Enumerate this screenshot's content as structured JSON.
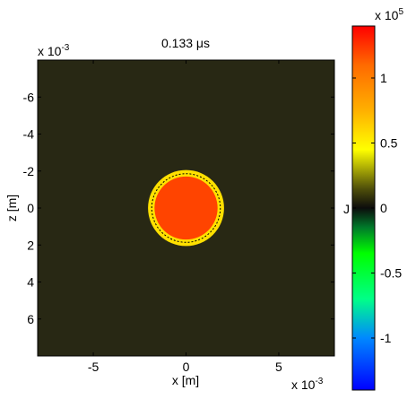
{
  "chart_data": {
    "type": "heatmap",
    "title": "0.133 μs",
    "xlabel": "x [m]",
    "ylabel": "z [m]",
    "x_scale_label": "x 10",
    "x_scale_exp": "-3",
    "z_scale_label": "x 10",
    "z_scale_exp": "-3",
    "xlim": [
      -8,
      8
    ],
    "zlim": [
      -8,
      8
    ],
    "z_axis_reversed": true,
    "x_ticks": [
      {
        "value": -5,
        "label": "-5"
      },
      {
        "value": 0,
        "label": "0"
      },
      {
        "value": 5,
        "label": "5"
      }
    ],
    "z_ticks": [
      {
        "value": -6,
        "label": "-6"
      },
      {
        "value": -4,
        "label": "-4"
      },
      {
        "value": -2,
        "label": "-2"
      },
      {
        "value": 0,
        "label": "0"
      },
      {
        "value": 2,
        "label": "2"
      },
      {
        "value": 4,
        "label": "4"
      },
      {
        "value": 6,
        "label": "6"
      }
    ],
    "background_value": 0,
    "regions": [
      {
        "shape": "disk",
        "center": [
          0,
          0
        ],
        "outer_radius": 2.05,
        "value": 50000,
        "color": "#ffe000"
      },
      {
        "shape": "disk",
        "center": [
          0,
          0
        ],
        "outer_radius": 1.7,
        "value": 125000,
        "color": "#ff4400"
      }
    ],
    "dashed_circle": {
      "center": [
        0,
        0
      ],
      "radius": 1.85
    },
    "colorbar": {
      "label": "J",
      "scale_label": "x 10",
      "scale_exp": "5",
      "clim": [
        -1.4,
        1.4
      ],
      "ticks": [
        {
          "value": -1,
          "label": "-1"
        },
        {
          "value": -0.5,
          "label": "-0.5"
        },
        {
          "value": 0,
          "label": "0"
        },
        {
          "value": 0.5,
          "label": "0.5"
        },
        {
          "value": 1,
          "label": "1"
        }
      ],
      "stops": [
        {
          "value": -1.4,
          "color": "#0000ff"
        },
        {
          "value": -1.0,
          "color": "#0088ff"
        },
        {
          "value": -0.7,
          "color": "#00ff88"
        },
        {
          "value": -0.35,
          "color": "#00ff00"
        },
        {
          "value": -0.15,
          "color": "#007a2a"
        },
        {
          "value": 0.0,
          "color": "#0c0c0c"
        },
        {
          "value": 0.15,
          "color": "#50500a"
        },
        {
          "value": 0.45,
          "color": "#ffff00"
        },
        {
          "value": 0.75,
          "color": "#ffb000"
        },
        {
          "value": 1.1,
          "color": "#ff6a00"
        },
        {
          "value": 1.4,
          "color": "#ff0000"
        }
      ]
    },
    "colors": {
      "background": "#282814",
      "dashed": "#000000"
    }
  }
}
